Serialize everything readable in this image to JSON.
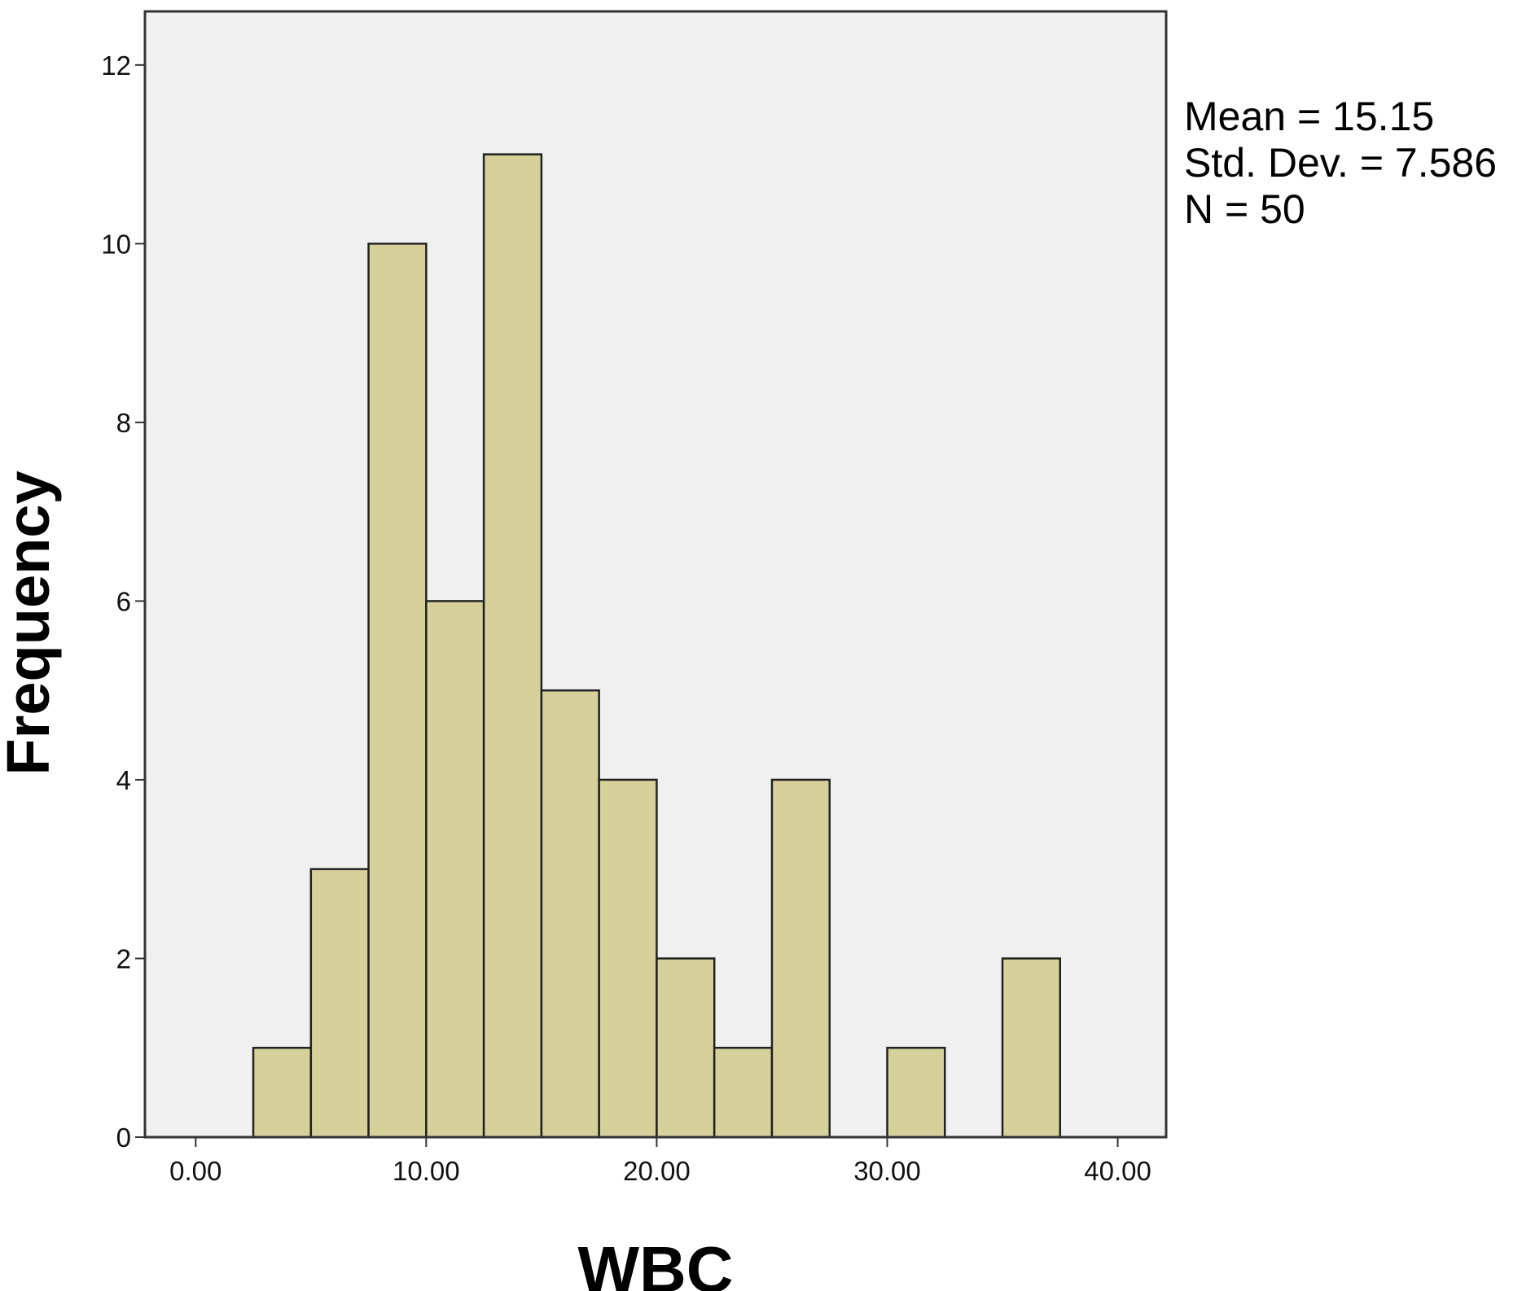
{
  "chart_data": {
    "type": "bar",
    "subtype": "histogram",
    "title": "",
    "xlabel": "WBC",
    "ylabel": "Frequency",
    "bin_width": 2.5,
    "bins": [
      {
        "start": 2.5,
        "end": 5.0,
        "count": 1
      },
      {
        "start": 5.0,
        "end": 7.5,
        "count": 3
      },
      {
        "start": 7.5,
        "end": 10.0,
        "count": 10
      },
      {
        "start": 10.0,
        "end": 12.5,
        "count": 6
      },
      {
        "start": 12.5,
        "end": 15.0,
        "count": 11
      },
      {
        "start": 15.0,
        "end": 17.5,
        "count": 5
      },
      {
        "start": 17.5,
        "end": 20.0,
        "count": 4
      },
      {
        "start": 20.0,
        "end": 22.5,
        "count": 2
      },
      {
        "start": 22.5,
        "end": 25.0,
        "count": 1
      },
      {
        "start": 25.0,
        "end": 27.5,
        "count": 4
      },
      {
        "start": 30.0,
        "end": 32.5,
        "count": 1
      },
      {
        "start": 35.0,
        "end": 37.5,
        "count": 2
      }
    ],
    "xlim": [
      -2.2,
      42.1
    ],
    "ylim": [
      0,
      12.6
    ],
    "xticks": [
      {
        "value": 0,
        "label": "0.00"
      },
      {
        "value": 10,
        "label": "10.00"
      },
      {
        "value": 20,
        "label": "20.00"
      },
      {
        "value": 30,
        "label": "30.00"
      },
      {
        "value": 40,
        "label": "40.00"
      }
    ],
    "yticks": [
      {
        "value": 0,
        "label": "0"
      },
      {
        "value": 2,
        "label": "2"
      },
      {
        "value": 4,
        "label": "4"
      },
      {
        "value": 6,
        "label": "6"
      },
      {
        "value": 8,
        "label": "8"
      },
      {
        "value": 10,
        "label": "10"
      },
      {
        "value": 12,
        "label": "12"
      }
    ],
    "grid": false,
    "legend": "none",
    "stats": [
      {
        "key": "mean",
        "text": "Mean = 15.15"
      },
      {
        "key": "std",
        "text": "Std. Dev. = 7.586"
      },
      {
        "key": "n",
        "text": "N = 50"
      }
    ],
    "stats_placement": "right",
    "colors": {
      "bar_fill": "#d6d19b",
      "bar_stroke": "#222222",
      "plot_background": "#f0f0f0",
      "frame": "#333333",
      "page_background": "#ffffff"
    }
  }
}
